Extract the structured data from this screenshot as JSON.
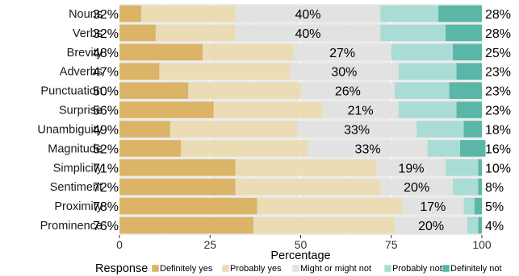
{
  "chart_data": {
    "type": "bar",
    "orientation": "horizontal",
    "stacked": true,
    "xlabel": "Percentage",
    "xlim": [
      0,
      100
    ],
    "xticks": [
      0,
      25,
      50,
      75,
      100
    ],
    "legend": {
      "title": "Response",
      "position": "bottom"
    },
    "categories": [
      "Nouns",
      "Verbs",
      "Brevity",
      "Adverbs",
      "Punctuation",
      "Surprise",
      "Unambiguity",
      "Magnitude",
      "Simplicity",
      "Sentiment",
      "Proximity",
      "Prominence"
    ],
    "series": [
      {
        "name": "Definitely yes",
        "color": "#dbb467",
        "values": [
          6,
          10,
          23,
          11,
          19,
          26,
          14,
          17,
          32,
          32,
          38,
          37
        ]
      },
      {
        "name": "Probably yes",
        "color": "#ecdcb5",
        "values": [
          26,
          22,
          25,
          36,
          31,
          30,
          35,
          35,
          39,
          40,
          40,
          39
        ]
      },
      {
        "name": "Might or might not",
        "color": "#e2e2e2",
        "values": [
          40,
          40,
          27,
          30,
          26,
          21,
          33,
          33,
          19,
          20,
          17,
          20
        ]
      },
      {
        "name": "Probably not",
        "color": "#a8dcd4",
        "values": [
          16,
          18,
          17,
          16,
          15,
          16,
          13,
          9,
          9,
          7,
          3,
          3
        ]
      },
      {
        "name": "Definitely not",
        "color": "#5ab6a6",
        "values": [
          12,
          10,
          8,
          7,
          9,
          7,
          5,
          7,
          1,
          1,
          2,
          1
        ]
      }
    ],
    "left_labels": [
      "32%",
      "32%",
      "48%",
      "47%",
      "50%",
      "56%",
      "49%",
      "52%",
      "71%",
      "72%",
      "78%",
      "76%"
    ],
    "middle_labels": [
      "40%",
      "40%",
      "27%",
      "30%",
      "26%",
      "21%",
      "33%",
      "33%",
      "19%",
      "20%",
      "17%",
      "20%"
    ],
    "right_labels": [
      "28%",
      "28%",
      "25%",
      "23%",
      "23%",
      "23%",
      "18%",
      "16%",
      "10%",
      "8%",
      "5%",
      "4%"
    ]
  }
}
